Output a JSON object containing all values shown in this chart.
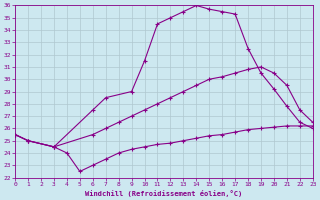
{
  "background_color": "#cde8f0",
  "grid_color": "#b0c8d0",
  "line_color": "#880088",
  "xlabel": "Windchill (Refroidissement éolien,°C)",
  "xlim": [
    0,
    23
  ],
  "ylim": [
    22,
    36
  ],
  "xticks": [
    0,
    1,
    2,
    3,
    4,
    5,
    6,
    7,
    8,
    9,
    10,
    11,
    12,
    13,
    14,
    15,
    16,
    17,
    18,
    19,
    20,
    21,
    22,
    23
  ],
  "yticks": [
    22,
    23,
    24,
    25,
    26,
    27,
    28,
    29,
    30,
    31,
    32,
    33,
    34,
    35,
    36
  ],
  "curve_top_x": [
    0,
    1,
    3,
    6,
    7,
    9,
    10,
    11,
    12,
    13,
    14,
    15,
    16,
    17,
    18,
    19,
    20,
    21,
    22,
    23
  ],
  "curve_top_y": [
    25.5,
    25.0,
    24.5,
    27.5,
    28.5,
    29.0,
    31.5,
    34.5,
    35.0,
    35.5,
    36.0,
    35.7,
    35.5,
    35.3,
    32.5,
    30.5,
    29.2,
    27.8,
    26.5,
    26.0
  ],
  "curve_mid_x": [
    0,
    1,
    3,
    6,
    7,
    8,
    9,
    10,
    11,
    12,
    13,
    14,
    15,
    16,
    17,
    18,
    19,
    20,
    21,
    22,
    23
  ],
  "curve_mid_y": [
    25.5,
    25.0,
    24.5,
    25.5,
    26.0,
    26.5,
    27.0,
    27.5,
    28.0,
    28.5,
    29.0,
    29.5,
    30.0,
    30.2,
    30.5,
    30.8,
    31.0,
    30.5,
    29.5,
    27.5,
    26.5
  ],
  "curve_bot_x": [
    0,
    1,
    3,
    4,
    5,
    6,
    7,
    8,
    9,
    10,
    11,
    12,
    13,
    14,
    15,
    16,
    17,
    18,
    19,
    20,
    21,
    22,
    23
  ],
  "curve_bot_y": [
    25.5,
    25.0,
    24.5,
    24.0,
    22.5,
    23.0,
    23.5,
    24.0,
    24.3,
    24.5,
    24.7,
    24.8,
    25.0,
    25.2,
    25.4,
    25.5,
    25.7,
    25.9,
    26.0,
    26.1,
    26.2,
    26.2,
    26.2
  ]
}
